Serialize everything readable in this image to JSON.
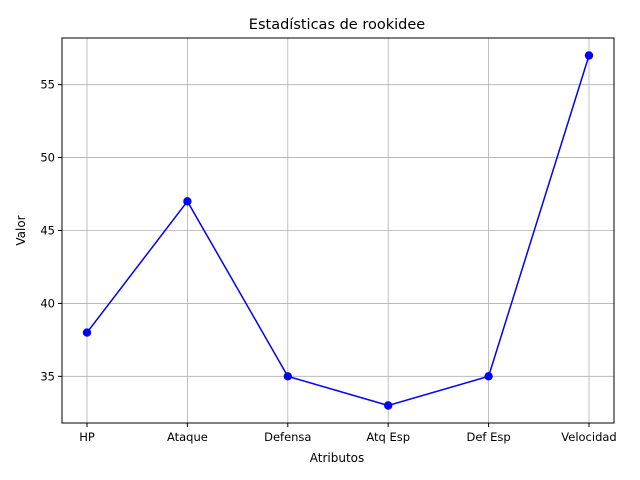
{
  "chart_data": {
    "type": "line",
    "title": "Estadísticas de rookidee",
    "xlabel": "Atributos",
    "ylabel": "Valor",
    "categories": [
      "HP",
      "Ataque",
      "Defensa",
      "Atq Esp",
      "Def Esp",
      "Velocidad"
    ],
    "series": [
      {
        "values": [
          38,
          47,
          35,
          33,
          35,
          57
        ]
      }
    ],
    "ylim": [
      31.8,
      58.2
    ],
    "yticks": [
      35,
      40,
      45,
      50,
      55
    ],
    "grid": true,
    "line_color": "#0000ff",
    "marker": "circle"
  }
}
